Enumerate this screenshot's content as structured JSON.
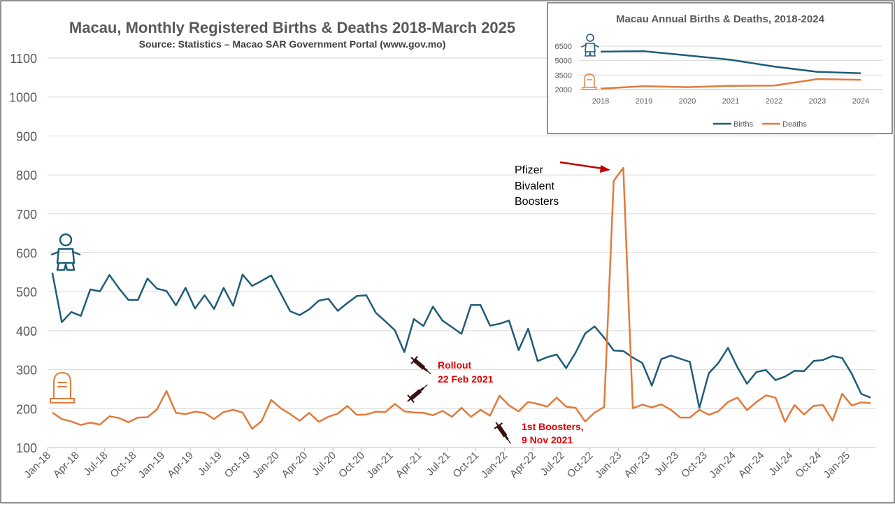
{
  "chart_data": [
    {
      "type": "line",
      "title": "Macau, Monthly Registered Births & Deaths 2018-March 2025",
      "subtitle": "Source: Statistics – Macao SAR Government Portal (www.gov.mo)",
      "xlabel": "",
      "ylabel": "",
      "ylim": [
        100,
        1100
      ],
      "yticks": [
        "100",
        "200",
        "300",
        "400",
        "500",
        "600",
        "700",
        "800",
        "900",
        "1000",
        "1100"
      ],
      "grid": true,
      "xtick_labels": [
        "Jan-18",
        "Apr-18",
        "Jul-18",
        "Oct-18",
        "Jan-19",
        "Apr-19",
        "Jul-19",
        "Oct-19",
        "Jan-20",
        "Apr-20",
        "Jul-20",
        "Oct-20",
        "Jan-21",
        "Apr-21",
        "Jul-21",
        "Oct-21",
        "Jan-22",
        "Apr-22",
        "Jul-22",
        "Oct-22",
        "Jan-23",
        "Apr-23",
        "Jul-23",
        "Oct-23",
        "Jan-24",
        "Apr-24",
        "Jul-24",
        "Oct-24",
        "Jan-25"
      ],
      "colors": {
        "births": "#1F5C79",
        "deaths": "#E07B3C"
      },
      "series": [
        {
          "key": "births",
          "values": [
            549,
            422,
            448,
            438,
            506,
            501,
            543,
            509,
            479,
            479,
            534,
            508,
            502,
            465,
            510,
            457,
            491,
            456,
            510,
            464,
            544,
            515,
            528,
            542,
            496,
            450,
            440,
            455,
            477,
            482,
            451,
            471,
            489,
            491,
            446,
            424,
            401,
            345,
            430,
            412,
            462,
            426,
            409,
            392,
            466,
            466,
            413,
            418,
            426,
            350,
            405,
            322,
            332,
            339,
            304,
            344,
            393,
            411,
            382,
            349,
            348,
            331,
            317,
            259,
            327,
            336,
            328,
            320,
            202,
            291,
            317,
            356,
            306,
            264,
            294,
            299,
            273,
            282,
            297,
            296,
            322,
            325,
            335,
            330,
            290,
            238,
            228
          ]
        },
        {
          "key": "deaths",
          "values": [
            190,
            173,
            167,
            158,
            164,
            159,
            180,
            176,
            165,
            177,
            178,
            198,
            245,
            189,
            186,
            192,
            189,
            173,
            191,
            197,
            190,
            148,
            168,
            222,
            201,
            186,
            169,
            189,
            166,
            179,
            187,
            207,
            184,
            185,
            192,
            191,
            212,
            193,
            190,
            189,
            183,
            194,
            179,
            202,
            179,
            197,
            182,
            233,
            208,
            193,
            217,
            212,
            205,
            228,
            205,
            202,
            167,
            190,
            204,
            785,
            818,
            201,
            210,
            203,
            211,
            197,
            177,
            177,
            197,
            184,
            193,
            217,
            228,
            196,
            217,
            234,
            228,
            166,
            209,
            185,
            207,
            209,
            169,
            238,
            208,
            216,
            214
          ]
        }
      ],
      "annotations": [
        {
          "lines": [
            "Pfizer",
            "Bivalent",
            "Boosters"
          ]
        },
        {
          "lines": [
            "Rollout",
            "22 Feb 2021"
          ]
        },
        {
          "lines": [
            "1st Boosters,",
            "9 Nov 2021"
          ]
        }
      ]
    },
    {
      "type": "line",
      "title": "Macau Annual Births & Deaths, 2018-2024",
      "categories": [
        "2018",
        "2019",
        "2020",
        "2021",
        "2022",
        "2023",
        "2024"
      ],
      "yticks": [
        "2000",
        "3500",
        "5000",
        "6500"
      ],
      "ylim": [
        2000,
        6500
      ],
      "legend": "bottom",
      "series": [
        {
          "name": "Births",
          "values": [
            5925,
            5980,
            5545,
            5085,
            4385,
            3830,
            3690
          ]
        },
        {
          "name": "Deaths",
          "values": [
            2090,
            2350,
            2245,
            2380,
            2410,
            3085,
            3010
          ]
        }
      ]
    }
  ]
}
